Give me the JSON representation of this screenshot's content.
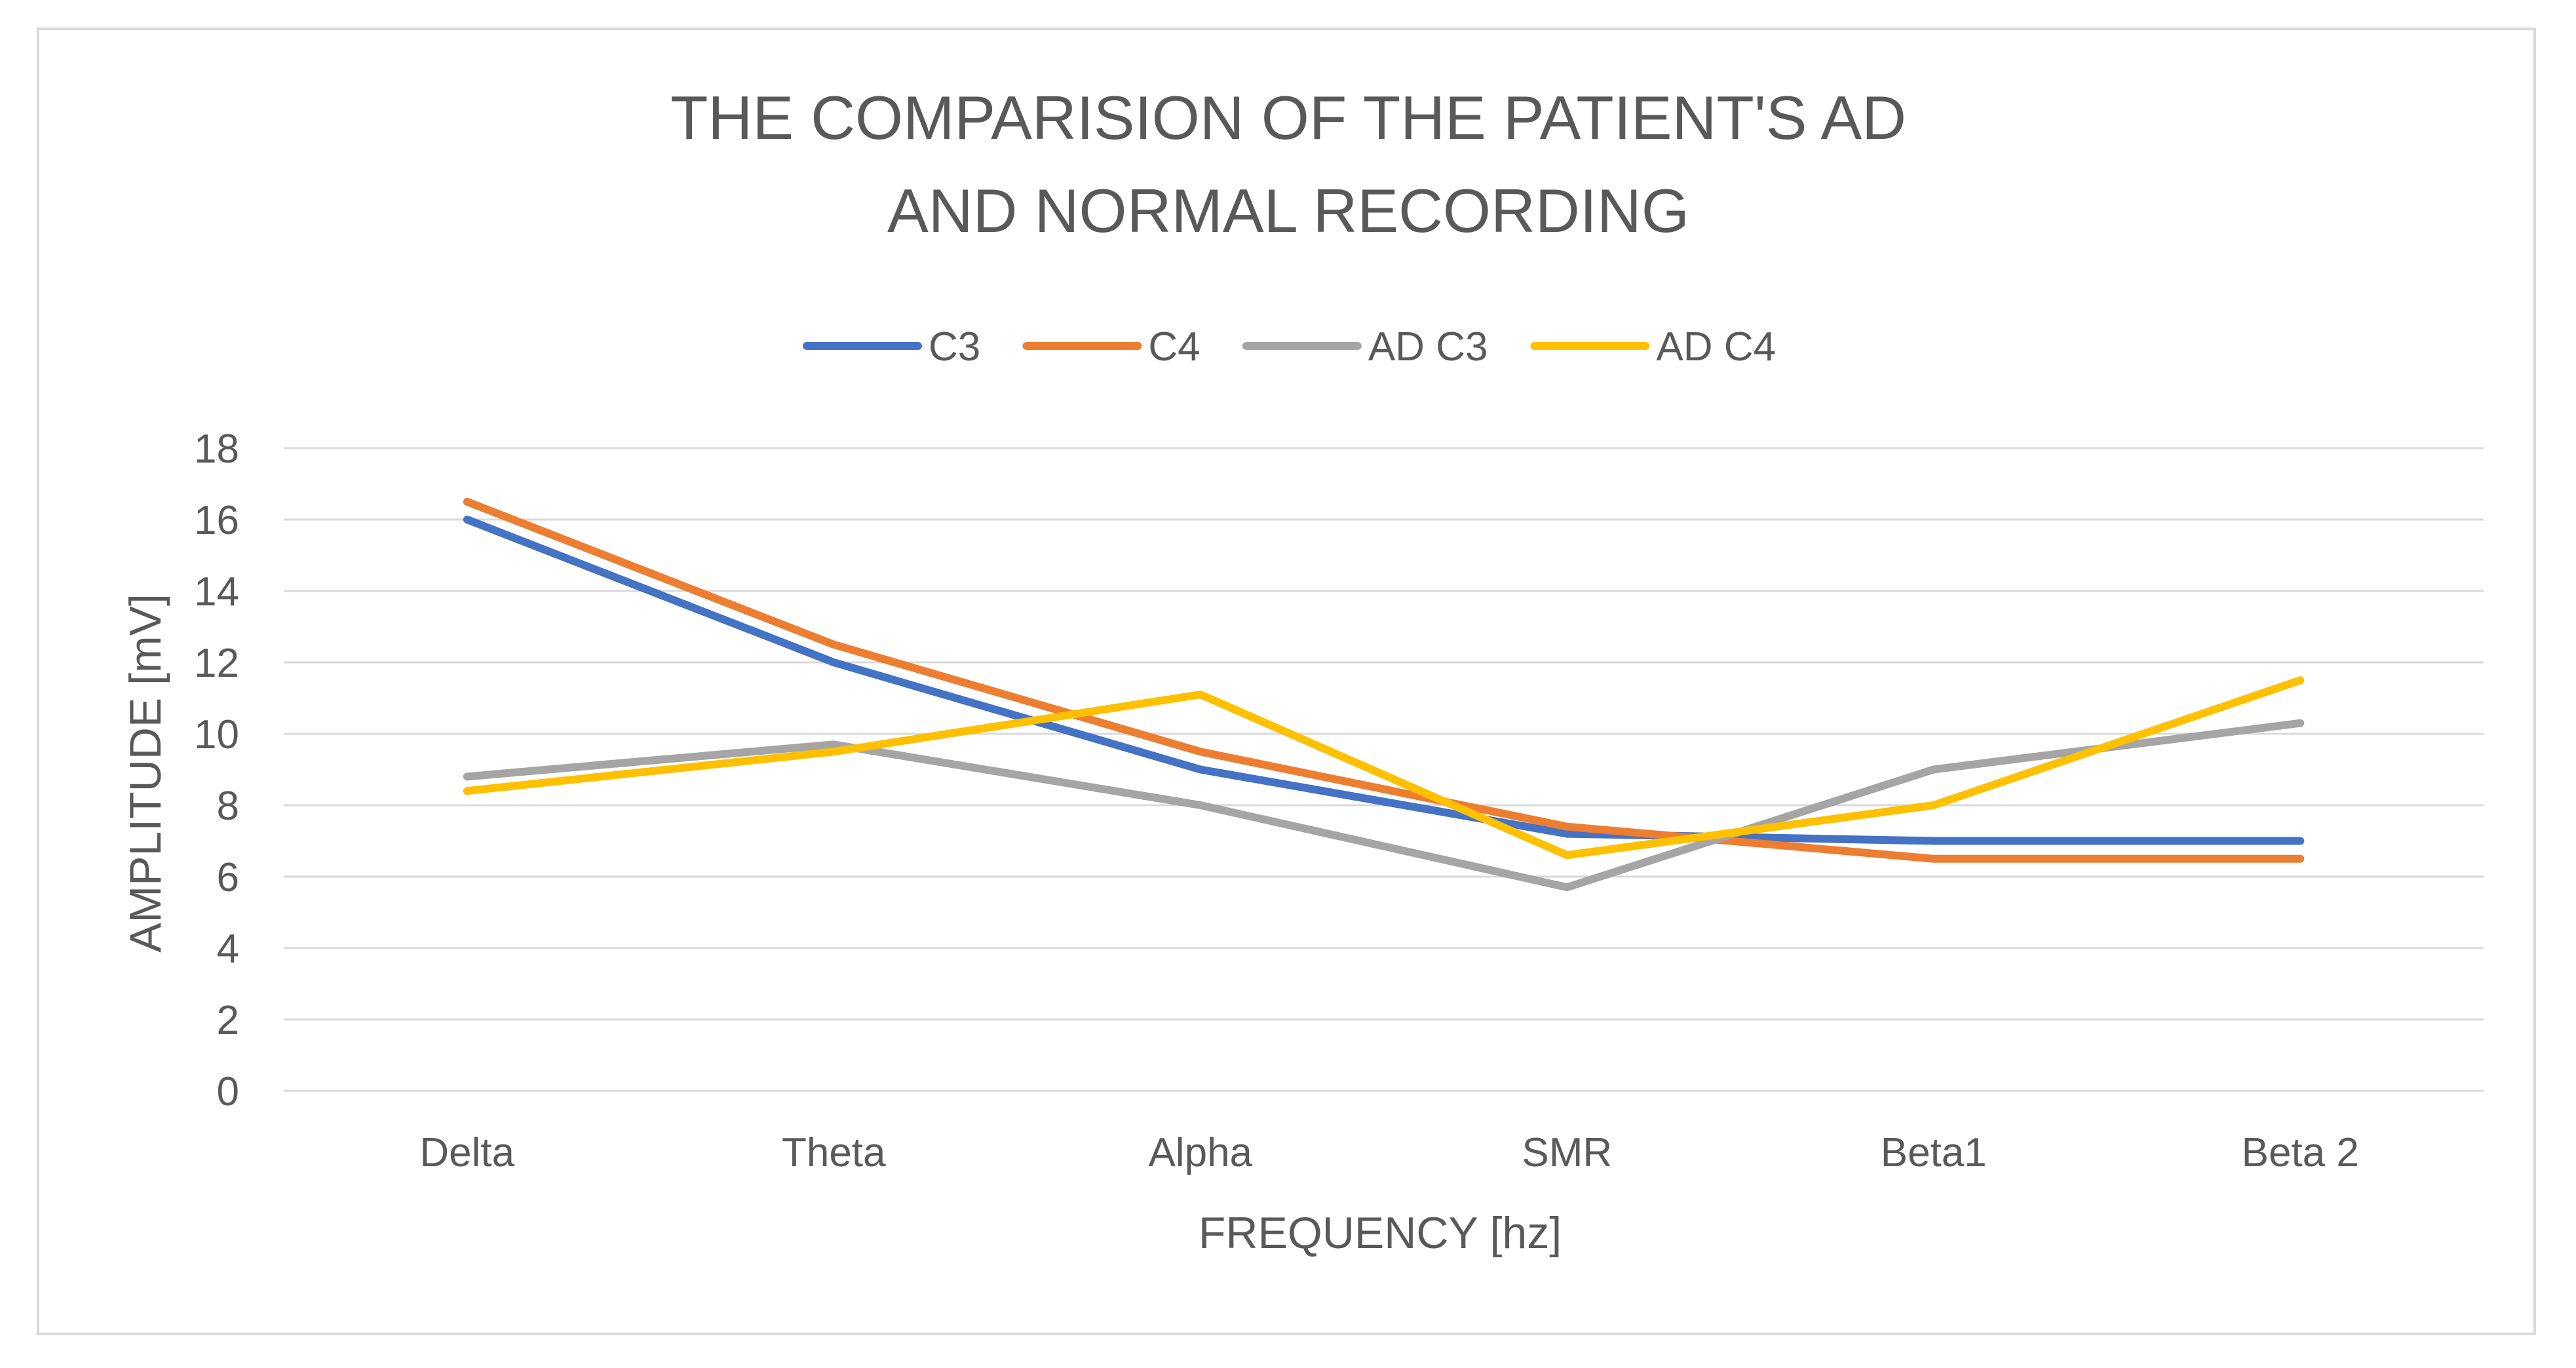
{
  "chart_data": {
    "type": "line",
    "title_lines": [
      "THE COMPARISION OF THE PATIENT'S AD",
      "AND NORMAL RECORDING"
    ],
    "xlabel": "FREQUENCY [hz]",
    "ylabel": "AMPLITUDE  [mV]",
    "categories": [
      "Delta",
      "Theta",
      "Alpha",
      "SMR",
      "Beta1",
      "Beta 2"
    ],
    "ylim": [
      0,
      18
    ],
    "yticks": [
      0,
      2,
      4,
      6,
      8,
      10,
      12,
      14,
      16,
      18
    ],
    "grid": true,
    "legend_position": "top",
    "series": [
      {
        "name": "C3",
        "color": "#4472c4",
        "values": [
          16.0,
          12.0,
          9.0,
          7.2,
          7.0,
          7.0
        ]
      },
      {
        "name": "C4",
        "color": "#ed7d31",
        "values": [
          16.5,
          12.5,
          9.5,
          7.4,
          6.5,
          6.5
        ]
      },
      {
        "name": "AD C3",
        "color": "#a5a5a5",
        "values": [
          8.8,
          9.7,
          8.0,
          5.7,
          9.0,
          10.3
        ]
      },
      {
        "name": "AD C4",
        "color": "#ffc000",
        "values": [
          8.4,
          9.5,
          11.1,
          6.6,
          8.0,
          11.5
        ]
      }
    ]
  }
}
